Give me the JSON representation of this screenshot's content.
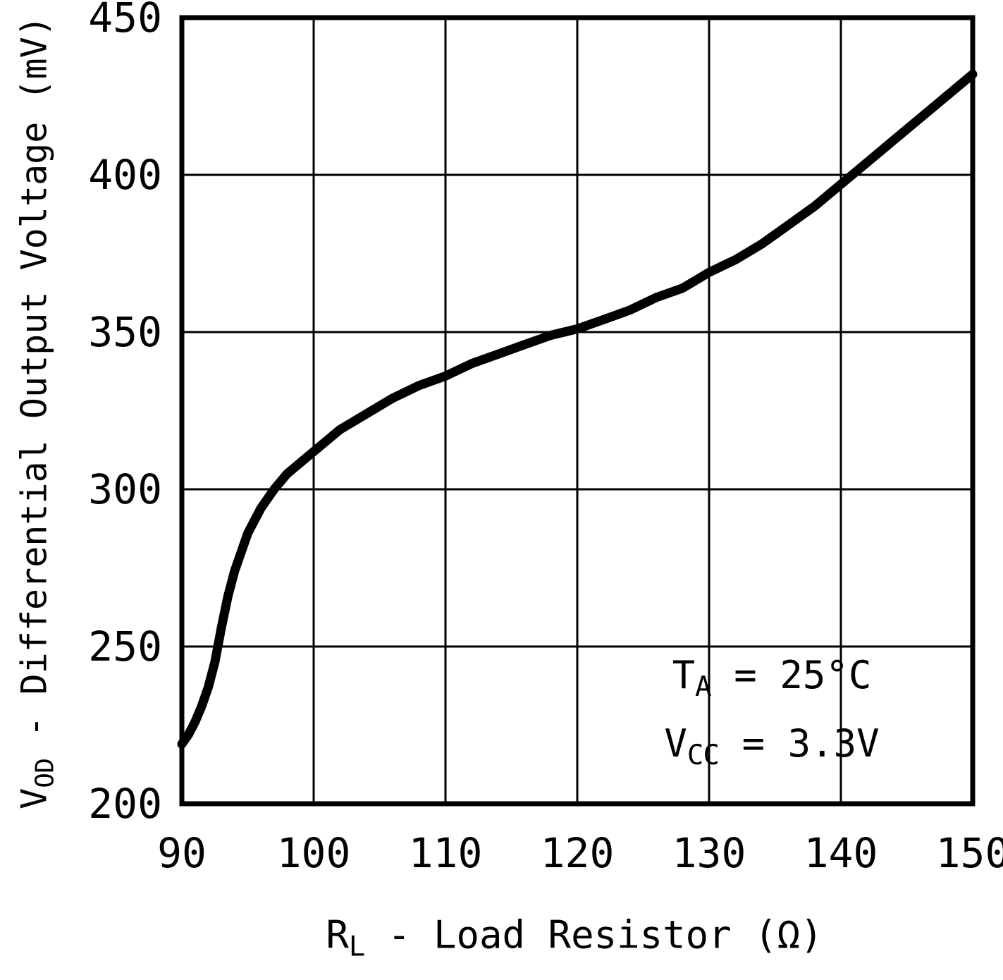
{
  "chart_data": {
    "type": "line",
    "title": "",
    "xlabel": {
      "sym": "R",
      "sub": "L",
      "rest": " - Load Resistor (Ω)"
    },
    "ylabel": {
      "sym": "V",
      "sub": "OD",
      "rest": " - Differential Output Voltage (mV)"
    },
    "xlim": [
      90,
      150
    ],
    "ylim": [
      200,
      450
    ],
    "x_ticks": [
      90,
      100,
      110,
      120,
      130,
      140,
      150
    ],
    "y_ticks": [
      200,
      250,
      300,
      350,
      400,
      450
    ],
    "grid": true,
    "legend": "none",
    "line_color": "#000000",
    "background_color": "#ffffff",
    "series": [
      {
        "name": "Differential Output Voltage vs Load Resistor",
        "x": [
          90,
          90.5,
          91,
          91.5,
          92,
          92.5,
          93,
          93.5,
          94,
          95,
          96,
          97,
          98,
          100,
          102,
          104,
          106,
          108,
          110,
          112,
          114,
          116,
          118,
          120,
          122,
          124,
          126,
          128,
          130,
          132,
          134,
          136,
          138,
          140,
          142,
          144,
          146,
          148,
          150
        ],
        "y": [
          219,
          222,
          226,
          231,
          237,
          245,
          256,
          266,
          274,
          286,
          294,
          300,
          305,
          312,
          319,
          324,
          329,
          333,
          336,
          340,
          343,
          346,
          349,
          351,
          354,
          357,
          361,
          364,
          369,
          373,
          378,
          384,
          390,
          397,
          404,
          411,
          418,
          425,
          432
        ]
      }
    ],
    "annotations": [
      {
        "sym": "T",
        "sub": "A",
        "rest": " = 25°C"
      },
      {
        "sym": "V",
        "sub": "CC",
        "rest": " = 3.3V"
      }
    ]
  }
}
